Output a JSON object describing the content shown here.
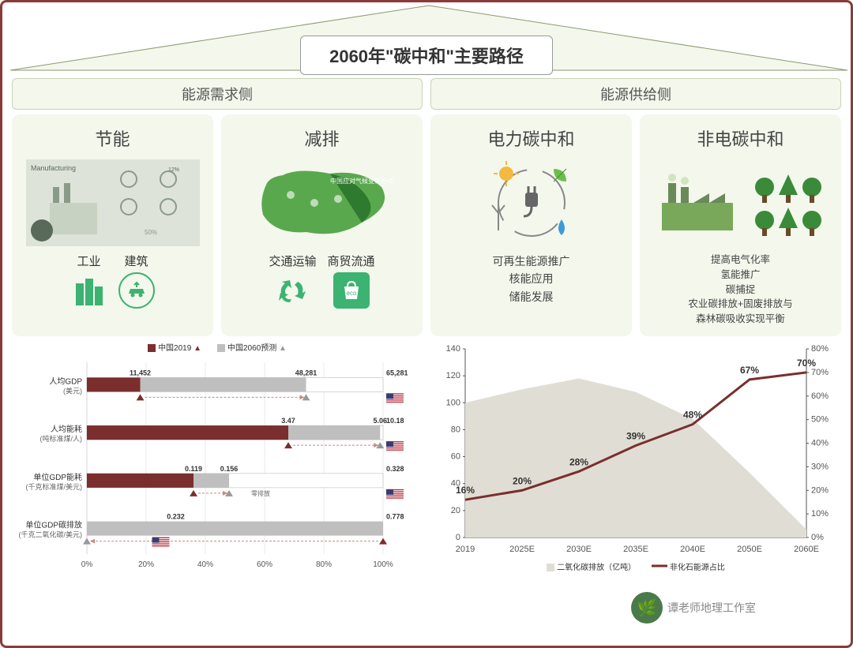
{
  "title": "2060年\"碳中和\"主要路径",
  "sides": {
    "demand": "能源需求侧",
    "supply": "能源供给侧"
  },
  "cards": {
    "saving": {
      "title": "节能",
      "subs": [
        "工业",
        "建筑"
      ]
    },
    "reduce": {
      "title": "减排",
      "subs": [
        "交通运输",
        "商贸流通"
      ]
    },
    "elec": {
      "title": "电力碳中和",
      "desc": [
        "可再生能源推广",
        "核能应用",
        "储能发展"
      ]
    },
    "nonelec": {
      "title": "非电碳中和",
      "desc": [
        "提高电气化率",
        "氢能推广",
        "碳捕捉",
        "农业碳排放+固废排放与",
        "森林碳吸收实现平衡"
      ]
    }
  },
  "colors": {
    "dark_red": "#7a2e2e",
    "grey": "#bfbfbf",
    "white": "#ffffff",
    "axis": "#555",
    "area": "#e0ddd4",
    "line": "#7a2e2e",
    "green": "#3cb371",
    "pale": "#f3f7ec",
    "border": "#8b3a3a"
  },
  "bar_chart": {
    "legend": {
      "cn2019": "中国2019",
      "cn2060": "中国2060预测"
    },
    "metrics": [
      {
        "label": "人均GDP",
        "unit": "(美元)",
        "v1_pct": 18,
        "v2_pct": 74,
        "v1": "11,452",
        "v2": "48,281",
        "us": "65,281"
      },
      {
        "label": "人均能耗",
        "unit": "(吨标准煤/人)",
        "v1_pct": 68,
        "v2_pct": 99,
        "v1": "3.47",
        "v2": "5.06",
        "us": "10.18"
      },
      {
        "label": "单位GDP能耗",
        "unit": "(千克标准煤/美元)",
        "v1_pct": 36,
        "v2_pct": 48,
        "v1": "0.119",
        "v2": "0.156",
        "us": "0.328",
        "note": "零排放"
      },
      {
        "label": "单位GDP碳排放",
        "unit": "(千克二氧化碳/美元)",
        "v1_pct": 3,
        "v2_pct": 100,
        "v1": "",
        "v2": "0.232",
        "us": "0.778",
        "reverse": true
      }
    ],
    "xticks": [
      "0%",
      "20%",
      "40%",
      "60%",
      "80%",
      "100%"
    ]
  },
  "line_chart": {
    "x": [
      "2019",
      "2025E",
      "2030E",
      "2035E",
      "2040E",
      "2050E",
      "2060E"
    ],
    "y_left": {
      "min": 0,
      "max": 140,
      "step": 20
    },
    "y_right": {
      "min": 0,
      "max": 80,
      "step": 10,
      "suffix": "%"
    },
    "area_values": [
      100,
      110,
      118,
      108,
      88,
      48,
      6
    ],
    "line_values": [
      16,
      20,
      28,
      39,
      48,
      67,
      70
    ],
    "line_labels": [
      "16%",
      "20%",
      "28%",
      "39%",
      "48%",
      "67%",
      "70%"
    ],
    "legend": {
      "area": "二氧化碳排放（亿吨）",
      "line": "非化石能源占比"
    }
  },
  "watermark": "谭老师地理工作室"
}
